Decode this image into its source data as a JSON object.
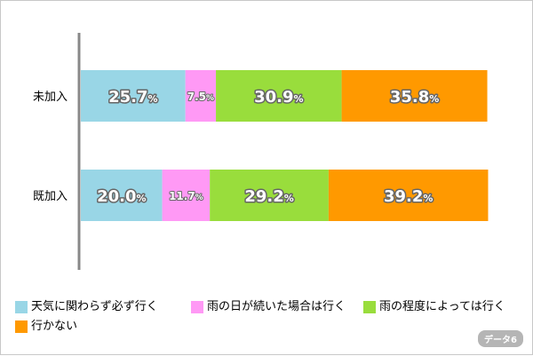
{
  "chart_data": {
    "type": "bar",
    "orientation": "horizontal",
    "stacked": true,
    "categories": [
      "未加入",
      "既加入"
    ],
    "series": [
      {
        "name": "天気に関わらず必ず行く",
        "color": "#99d6e6",
        "values": [
          25.7,
          20.0
        ]
      },
      {
        "name": "雨の日が続いた場合は行く",
        "color": "#ff99f5",
        "values": [
          7.5,
          11.7
        ]
      },
      {
        "name": "雨の程度によっては行く",
        "color": "#99dd3c",
        "values": [
          30.9,
          29.2
        ]
      },
      {
        "name": "行かない",
        "color": "#ff9900",
        "values": [
          35.8,
          39.2
        ]
      }
    ],
    "value_labels": [
      [
        "25.7",
        "7.5",
        "30.9",
        "35.8"
      ],
      [
        "20.0",
        "11.7",
        "29.2",
        "39.2"
      ]
    ],
    "unit": "%",
    "xlim": [
      0,
      100
    ],
    "legend_position": "bottom",
    "grid": false
  },
  "badge": "データ6"
}
